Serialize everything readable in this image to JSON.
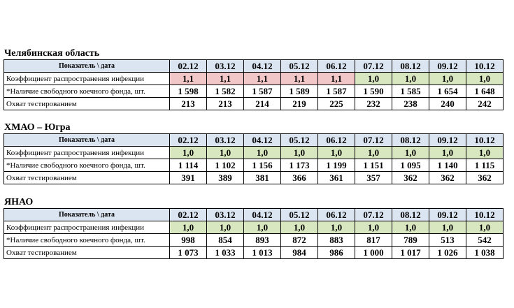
{
  "sections": [
    {
      "title": "Челябинская область",
      "header": {
        "label": "Показатель \\ дата",
        "dates": [
          "02.12",
          "03.12",
          "04.12",
          "05.12",
          "06.12",
          "07.12",
          "08.12",
          "09.12",
          "10.12"
        ]
      },
      "rows": [
        {
          "label": "Коэффициент распространения инфекции",
          "values": [
            "1,1",
            "1,1",
            "1,1",
            "1,1",
            "1,1",
            "1,0",
            "1,0",
            "1,0",
            "1,0"
          ],
          "colors": [
            "#f2c7c7",
            "#f2c7c7",
            "#f2c7c7",
            "#f2c7c7",
            "#f2c7c7",
            "#d9e7c0",
            "#d9e7c0",
            "#d9e7c0",
            "#d9e7c0"
          ]
        },
        {
          "label": "*Наличие свободного коечного фонда, шт.",
          "values": [
            "1 598",
            "1 582",
            "1 587",
            "1 589",
            "1 587",
            "1 590",
            "1 585",
            "1 654",
            "1 648"
          ]
        },
        {
          "label": "Охват тестированием",
          "values": [
            "213",
            "213",
            "214",
            "219",
            "225",
            "232",
            "238",
            "240",
            "242"
          ]
        }
      ]
    },
    {
      "title": "ХМАО – Югра",
      "header": {
        "label": "Показатель \\ дата",
        "dates": [
          "02.12",
          "03.12",
          "04.12",
          "05.12",
          "06.12",
          "07.12",
          "08.12",
          "09.12",
          "10.12"
        ]
      },
      "rows": [
        {
          "label": "Коэффициент распространения инфекции",
          "values": [
            "1,0",
            "1,0",
            "1,0",
            "1,0",
            "1,0",
            "1,0",
            "1,0",
            "1,0",
            "1,0"
          ],
          "colors": [
            "#d9e7c0",
            "#d9e7c0",
            "#d9e7c0",
            "#d9e7c0",
            "#d9e7c0",
            "#d9e7c0",
            "#d9e7c0",
            "#d9e7c0",
            "#d9e7c0"
          ]
        },
        {
          "label": "*Наличие свободного коечного фонда, шт.",
          "values": [
            "1 114",
            "1 102",
            "1 156",
            "1 173",
            "1 199",
            "1 151",
            "1 095",
            "1 140",
            "1 115"
          ]
        },
        {
          "label": "Охват тестированием",
          "values": [
            "391",
            "389",
            "381",
            "366",
            "361",
            "357",
            "362",
            "362",
            "362"
          ]
        }
      ]
    },
    {
      "title": "ЯНАО",
      "header": {
        "label": "Показатель \\ дата",
        "dates": [
          "02.12",
          "03.12",
          "04.12",
          "05.12",
          "06.12",
          "07.12",
          "08.12",
          "09.12",
          "10.12"
        ]
      },
      "rows": [
        {
          "label": "Коэффициент распространения инфекции",
          "values": [
            "1,0",
            "1,0",
            "1,0",
            "1,0",
            "1,0",
            "1,0",
            "1,0",
            "1,0",
            "1,0"
          ],
          "colors": [
            "#d9e7c0",
            "#d9e7c0",
            "#d9e7c0",
            "#d9e7c0",
            "#d9e7c0",
            "#d9e7c0",
            "#d9e7c0",
            "#d9e7c0",
            "#d9e7c0"
          ]
        },
        {
          "label": "*Наличие свободного коечного фонда, шт.",
          "values": [
            "998",
            "854",
            "893",
            "872",
            "883",
            "817",
            "789",
            "513",
            "542"
          ]
        },
        {
          "label": "Охват тестированием",
          "values": [
            "1 073",
            "1 033",
            "1 013",
            "984",
            "986",
            "1 000",
            "1 017",
            "1 026",
            "1 038"
          ]
        }
      ]
    }
  ]
}
